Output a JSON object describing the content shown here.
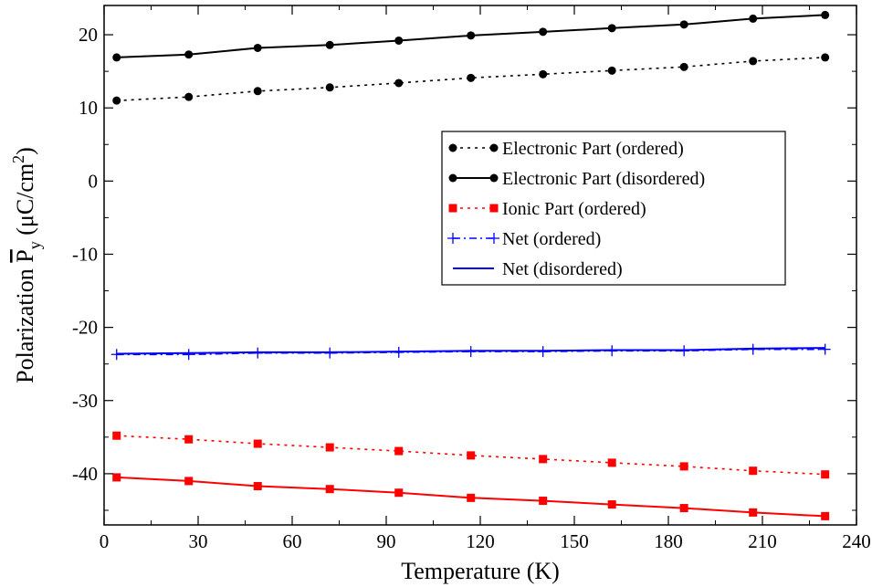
{
  "chart_data": {
    "type": "line",
    "title": "",
    "xlabel": "Temperature (K)",
    "ylabel": {
      "prefix": "Polarization ",
      "symbol": "P",
      "subscript": "y",
      "unit_open": " (μC/cm",
      "unit_sup": "2",
      "unit_close": ")"
    },
    "xlim": [
      0,
      240
    ],
    "ylim": [
      -47,
      24
    ],
    "xticks": [
      0,
      30,
      60,
      90,
      120,
      150,
      180,
      210,
      240
    ],
    "yticks": [
      -40,
      -30,
      -20,
      -10,
      0,
      10,
      20
    ],
    "grid": false,
    "legend_position": "center-right",
    "x": [
      4,
      27,
      49,
      72,
      94,
      117,
      140,
      162,
      185,
      207,
      230
    ],
    "series": [
      {
        "name": "Electronic Part (ordered)",
        "color": "#000000",
        "line": "dotted",
        "marker": "circle",
        "legend": true,
        "values": [
          11.0,
          11.5,
          12.3,
          12.8,
          13.4,
          14.1,
          14.6,
          15.1,
          15.6,
          16.4,
          16.9
        ]
      },
      {
        "name": "Electronic Part (disordered)",
        "color": "#000000",
        "line": "solid",
        "marker": "circle",
        "legend": true,
        "values": [
          16.9,
          17.3,
          18.2,
          18.6,
          19.2,
          19.9,
          20.4,
          20.9,
          21.4,
          22.2,
          22.7
        ]
      },
      {
        "name": "Ionic Part (ordered)",
        "color": "#ff0000",
        "line": "dotted",
        "marker": "square",
        "legend": true,
        "values": [
          -34.8,
          -35.3,
          -35.9,
          -36.4,
          -36.9,
          -37.5,
          -38.0,
          -38.5,
          -39.0,
          -39.6,
          -40.1
        ]
      },
      {
        "name": "",
        "color": "#ff0000",
        "line": "solid",
        "marker": "square",
        "legend": false,
        "values": [
          -40.5,
          -41.0,
          -41.7,
          -42.1,
          -42.6,
          -43.3,
          -43.7,
          -44.2,
          -44.7,
          -45.3,
          -45.8
        ]
      },
      {
        "name": "Net (ordered)",
        "color": "#0000ff",
        "line": "dashdot",
        "marker": "plus",
        "legend": true,
        "values": [
          -23.7,
          -23.7,
          -23.5,
          -23.5,
          -23.4,
          -23.3,
          -23.3,
          -23.2,
          -23.2,
          -23.0,
          -23.0
        ]
      },
      {
        "name": "Net (disordered)",
        "color": "#0000ff",
        "line": "solid",
        "marker": "none",
        "legend": true,
        "values": [
          -23.6,
          -23.5,
          -23.4,
          -23.4,
          -23.3,
          -23.2,
          -23.2,
          -23.1,
          -23.1,
          -22.9,
          -22.8
        ]
      }
    ]
  }
}
